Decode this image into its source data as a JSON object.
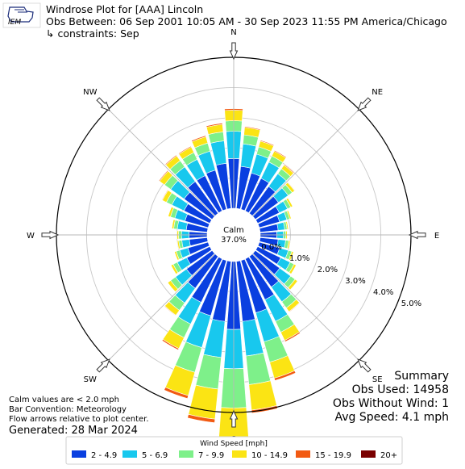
{
  "header": {
    "logo_text": "IEM",
    "title": "Windrose Plot for [AAA] Lincoln",
    "obs_between": "Obs Between: 06 Sep 2001 10:05 AM - 30 Sep 2023 11:55 PM America/Chicago",
    "constraints": "↳ constraints: Sep"
  },
  "center": {
    "label": "Calm",
    "value": "37.0%"
  },
  "notes": {
    "calm": "Calm values are < 2.0 mph",
    "convention": "Bar Convention: Meteorology",
    "arrows": "Flow arrows relative to plot center.",
    "generated": "Generated: 28 Mar 2024"
  },
  "summary": {
    "title": "Summary",
    "obs_used": "Obs Used: 14958",
    "obs_without_wind": "Obs Without Wind: 1",
    "avg_speed": "Avg Speed: 4.1 mph"
  },
  "legend": {
    "title": "Wind Speed [mph]",
    "items": [
      {
        "label": "2 - 4.9",
        "color": "#0a3fe0"
      },
      {
        "label": "5 - 6.9",
        "color": "#18c8ee"
      },
      {
        "label": "7 - 9.9",
        "color": "#7ef08a"
      },
      {
        "label": "10 - 14.9",
        "color": "#fbe414"
      },
      {
        "label": "15 - 19.9",
        "color": "#f25a12"
      },
      {
        "label": "20+",
        "color": "#7a0000"
      }
    ]
  },
  "chart_data": {
    "type": "windrose",
    "directions": [
      0,
      10,
      20,
      30,
      40,
      50,
      60,
      70,
      80,
      90,
      100,
      110,
      120,
      130,
      140,
      150,
      160,
      170,
      180,
      190,
      200,
      210,
      220,
      230,
      240,
      250,
      260,
      270,
      280,
      290,
      300,
      310,
      320,
      330,
      340,
      350
    ],
    "bins": [
      "2 - 4.9",
      "5 - 6.9",
      "7 - 9.9",
      "10 - 14.9",
      "15 - 19.9",
      "20+"
    ],
    "r_ticks": [
      "0.0%",
      "1.0%",
      "2.0%",
      "3.0%",
      "4.0%",
      "5.0%"
    ],
    "cardinals": [
      {
        "label": "N",
        "deg": 0
      },
      {
        "label": "NE",
        "deg": 45
      },
      {
        "label": "E",
        "deg": 90
      },
      {
        "label": "SE",
        "deg": 135
      },
      {
        "label": "S",
        "deg": 180
      },
      {
        "label": "SW",
        "deg": 225
      },
      {
        "label": "W",
        "deg": 270
      },
      {
        "label": "NW",
        "deg": 315
      }
    ],
    "series": [
      {
        "dir": 0,
        "values": [
          1.65,
          0.9,
          0.35,
          0.35,
          0.05,
          0.0
        ]
      },
      {
        "dir": 10,
        "values": [
          1.4,
          0.75,
          0.3,
          0.25,
          0.03,
          0.0
        ]
      },
      {
        "dir": 20,
        "values": [
          1.25,
          0.65,
          0.25,
          0.2,
          0.03,
          0.0
        ]
      },
      {
        "dir": 30,
        "values": [
          1.2,
          0.6,
          0.22,
          0.18,
          0.03,
          0.0
        ]
      },
      {
        "dir": 40,
        "values": [
          1.1,
          0.52,
          0.2,
          0.15,
          0.03,
          0.0
        ]
      },
      {
        "dir": 50,
        "values": [
          0.95,
          0.4,
          0.16,
          0.1,
          0.02,
          0.0
        ]
      },
      {
        "dir": 60,
        "values": [
          0.8,
          0.3,
          0.12,
          0.07,
          0.0,
          0.0
        ]
      },
      {
        "dir": 70,
        "values": [
          0.7,
          0.25,
          0.1,
          0.05,
          0.0,
          0.0
        ]
      },
      {
        "dir": 80,
        "values": [
          0.6,
          0.22,
          0.08,
          0.04,
          0.0,
          0.0
        ]
      },
      {
        "dir": 90,
        "values": [
          0.55,
          0.22,
          0.08,
          0.04,
          0.0,
          0.0
        ]
      },
      {
        "dir": 100,
        "values": [
          0.6,
          0.25,
          0.1,
          0.05,
          0.0,
          0.0
        ]
      },
      {
        "dir": 110,
        "values": [
          0.7,
          0.3,
          0.12,
          0.06,
          0.0,
          0.0
        ]
      },
      {
        "dir": 120,
        "values": [
          0.85,
          0.35,
          0.14,
          0.08,
          0.0,
          0.0
        ]
      },
      {
        "dir": 130,
        "values": [
          1.0,
          0.45,
          0.18,
          0.1,
          0.0,
          0.0
        ]
      },
      {
        "dir": 140,
        "values": [
          1.25,
          0.6,
          0.25,
          0.15,
          0.02,
          0.0
        ]
      },
      {
        "dir": 150,
        "values": [
          1.5,
          0.8,
          0.4,
          0.3,
          0.05,
          0.0
        ]
      },
      {
        "dir": 160,
        "values": [
          1.8,
          1.0,
          0.7,
          0.55,
          0.08,
          0.0
        ]
      },
      {
        "dir": 170,
        "values": [
          2.0,
          1.15,
          0.95,
          0.85,
          0.1,
          0.0
        ]
      },
      {
        "dir": 180,
        "values": [
          2.25,
          1.3,
          1.3,
          1.4,
          0.2,
          0.03
        ]
      },
      {
        "dir": 190,
        "values": [
          2.0,
          1.2,
          1.05,
          1.0,
          0.12,
          0.0
        ]
      },
      {
        "dir": 200,
        "values": [
          1.9,
          1.1,
          0.85,
          0.8,
          0.1,
          0.0
        ]
      },
      {
        "dir": 210,
        "values": [
          1.6,
          0.8,
          0.5,
          0.4,
          0.05,
          0.0
        ]
      },
      {
        "dir": 220,
        "values": [
          1.3,
          0.6,
          0.3,
          0.2,
          0.02,
          0.0
        ]
      },
      {
        "dir": 230,
        "values": [
          1.05,
          0.45,
          0.2,
          0.12,
          0.0,
          0.0
        ]
      },
      {
        "dir": 240,
        "values": [
          0.85,
          0.35,
          0.15,
          0.08,
          0.0,
          0.0
        ]
      },
      {
        "dir": 250,
        "values": [
          0.7,
          0.28,
          0.12,
          0.06,
          0.0,
          0.0
        ]
      },
      {
        "dir": 260,
        "values": [
          0.6,
          0.25,
          0.1,
          0.05,
          0.0,
          0.0
        ]
      },
      {
        "dir": 270,
        "values": [
          0.6,
          0.25,
          0.1,
          0.05,
          0.0,
          0.0
        ]
      },
      {
        "dir": 280,
        "values": [
          0.7,
          0.3,
          0.12,
          0.06,
          0.0,
          0.0
        ]
      },
      {
        "dir": 290,
        "values": [
          0.8,
          0.35,
          0.15,
          0.08,
          0.0,
          0.0
        ]
      },
      {
        "dir": 300,
        "values": [
          0.95,
          0.45,
          0.2,
          0.15,
          0.02,
          0.0
        ]
      },
      {
        "dir": 310,
        "values": [
          1.15,
          0.55,
          0.25,
          0.2,
          0.03,
          0.0
        ]
      },
      {
        "dir": 320,
        "values": [
          1.3,
          0.6,
          0.25,
          0.2,
          0.03,
          0.0
        ]
      },
      {
        "dir": 330,
        "values": [
          1.3,
          0.6,
          0.25,
          0.2,
          0.03,
          0.0
        ]
      },
      {
        "dir": 340,
        "values": [
          1.35,
          0.65,
          0.28,
          0.22,
          0.04,
          0.0
        ]
      },
      {
        "dir": 350,
        "values": [
          1.5,
          0.75,
          0.3,
          0.25,
          0.04,
          0.0
        ]
      }
    ]
  }
}
